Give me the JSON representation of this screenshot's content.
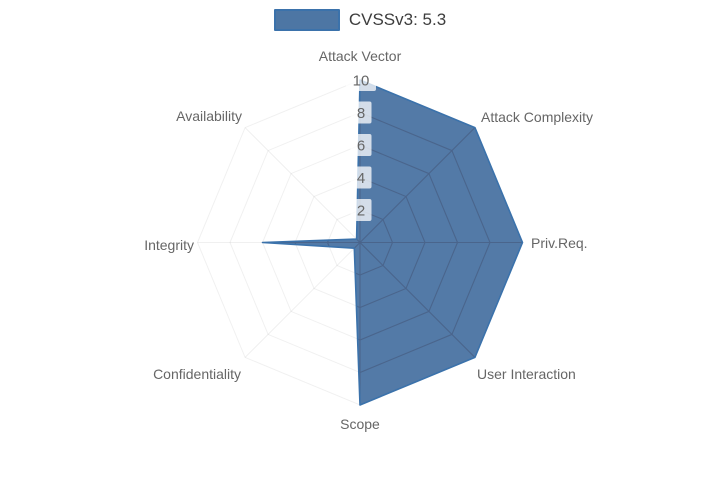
{
  "legend": {
    "position": "top",
    "label": "CVSSv3: 5.3"
  },
  "chart_data": {
    "type": "radar",
    "title": "",
    "categories": [
      "Attack Vector",
      "Attack Complexity",
      "Priv.Req.",
      "User Interaction",
      "Scope",
      "Confidentiality",
      "Integrity",
      "Availability"
    ],
    "series": [
      {
        "name": "CVSSv3: 5.3",
        "values": [
          10,
          10,
          10,
          10,
          10,
          0.5,
          6,
          0.3
        ]
      }
    ],
    "radial_axis": {
      "min": 0,
      "max": 10,
      "ticks": [
        2,
        4,
        6,
        8,
        10
      ],
      "tick_position": "top-vertical-axis"
    },
    "grid": "polygonal-web-8-spokes",
    "legend_position": "top-center",
    "colors": {
      "series_fill": "#4d76a4",
      "series_stroke": "#3b72ab",
      "grid_line": "#4a658c",
      "grid_line_faint": "rgba(0,0,0,0.06)",
      "tick_text": "#666666",
      "tick_backdrop": "rgba(255,255,255,0.75)",
      "category_label": "#666666",
      "legend_text": "#3d3d3d"
    }
  }
}
